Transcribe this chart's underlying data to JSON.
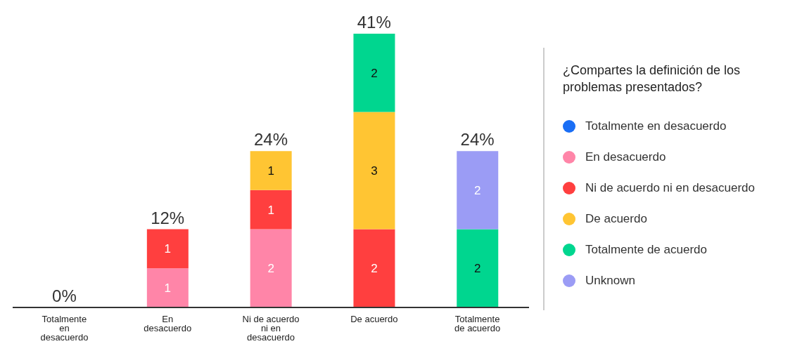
{
  "chart_data": {
    "type": "bar",
    "stacked": true,
    "data_labels": true,
    "legend": "right",
    "legend_title": "¿Compartes la definición de los problemas presentados?",
    "categories": [
      "Totalmente en desacuerdo",
      "En desacuerdo",
      "Ni de acuerdo ni en desacuerdo",
      "De acuerdo",
      "Totalmente de acuerdo"
    ],
    "series": [
      {
        "name": "Totalmente en desacuerdo",
        "color": "#1a6ef5",
        "values": [
          null,
          null,
          null,
          null,
          null
        ]
      },
      {
        "name": "En desacuerdo",
        "color": "#ff85a8",
        "values": [
          null,
          1,
          2,
          null,
          null
        ]
      },
      {
        "name": "Ni de acuerdo ni en desacuerdo",
        "color": "#ff3f3f",
        "values": [
          null,
          1,
          1,
          2,
          null
        ]
      },
      {
        "name": "De acuerdo",
        "color": "#ffc533",
        "values": [
          null,
          null,
          1,
          3,
          null
        ]
      },
      {
        "name": "Totalmente de acuerdo",
        "color": "#00d68f",
        "values": [
          null,
          null,
          null,
          2,
          2
        ]
      },
      {
        "name": "Unknown",
        "color": "#9b9cf5",
        "values": [
          null,
          null,
          null,
          null,
          2
        ]
      }
    ],
    "annotations": [
      "0%",
      {
        "text": "12%",
        "x": "En desacuerdo",
        "y": 2
      },
      {
        "text": "24%",
        "x": "Ni de acuerdo ni en desacuerdo",
        "y": 4
      },
      {
        "text": "41%",
        "x": "De acuerdo",
        "y": 7
      },
      {
        "text": "24%",
        "x": "Totalmente de acuerdo",
        "y": 4
      }
    ]
  }
}
